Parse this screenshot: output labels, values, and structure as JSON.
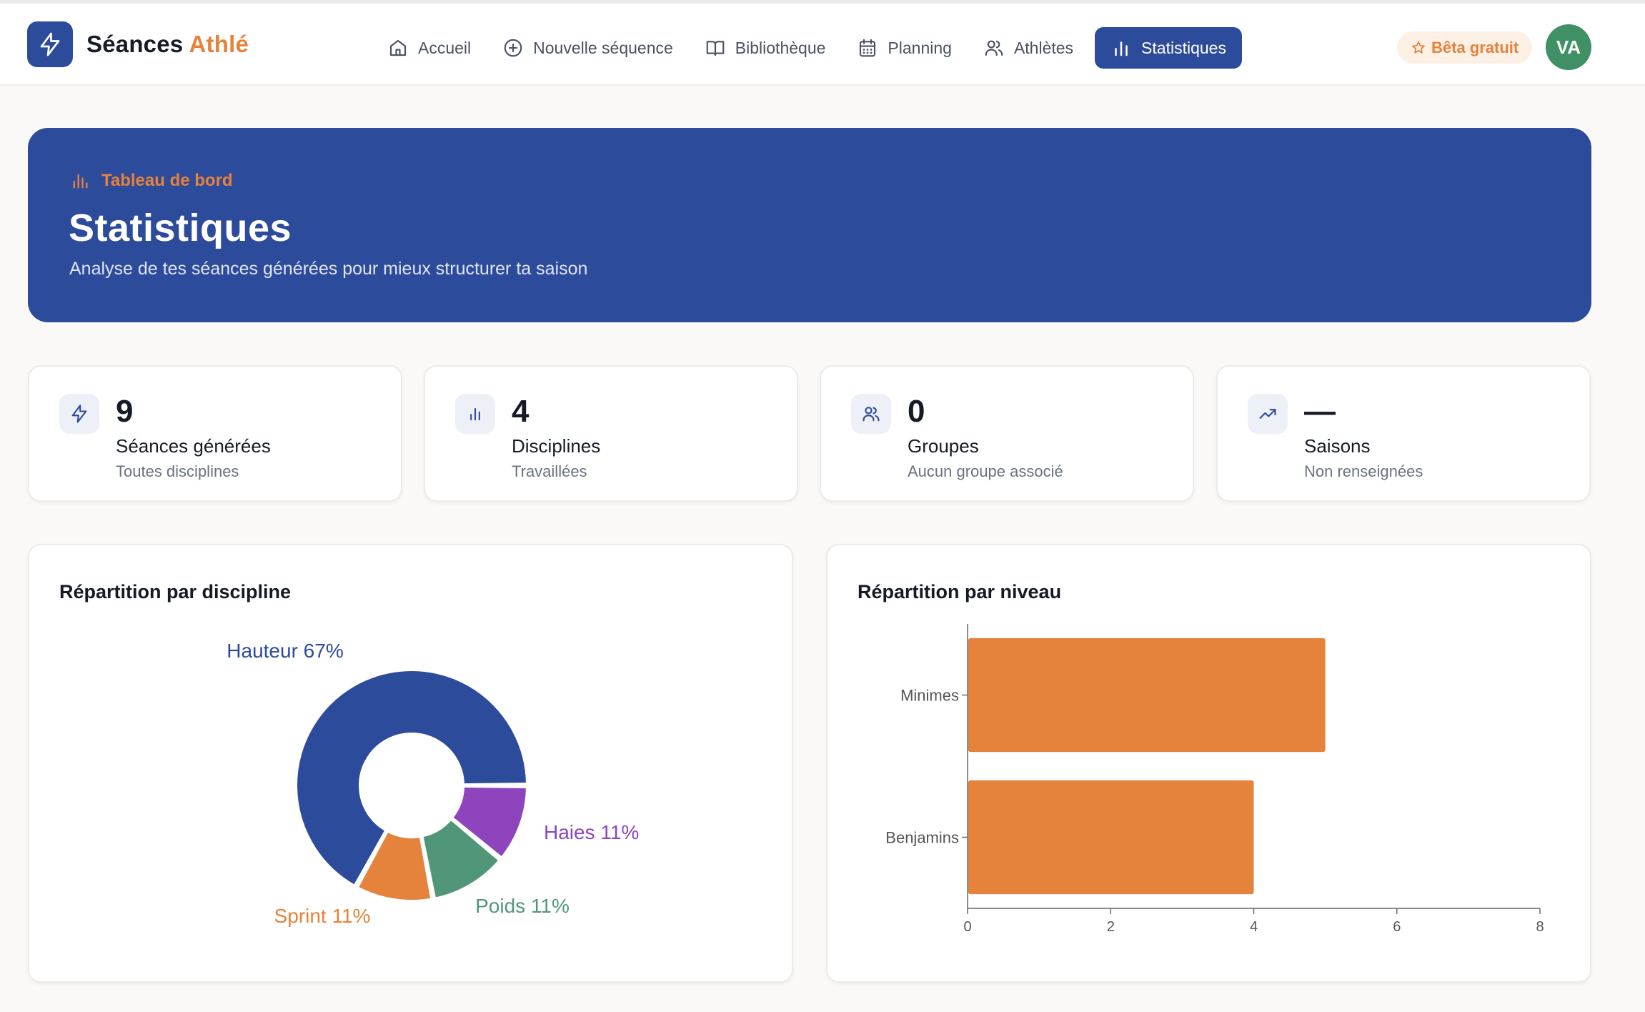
{
  "app": {
    "brand_main": "Séances",
    "brand_accent": "Athlé",
    "logo_icon": "lightning-icon"
  },
  "nav": {
    "items": [
      {
        "label": "Accueil",
        "icon": "home-icon",
        "active": false
      },
      {
        "label": "Nouvelle séquence",
        "icon": "plus-circle-icon",
        "active": false
      },
      {
        "label": "Bibliothèque",
        "icon": "book-icon",
        "active": false
      },
      {
        "label": "Planning",
        "icon": "calendar-icon",
        "active": false
      },
      {
        "label": "Athlètes",
        "icon": "users-icon",
        "active": false
      },
      {
        "label": "Statistiques",
        "icon": "bar-chart-icon",
        "active": true
      }
    ]
  },
  "header": {
    "beta_label": "Bêta gratuit",
    "beta_icon": "star-icon",
    "avatar_initials": "VA"
  },
  "hero": {
    "kicker": "Tableau de bord",
    "title": "Statistiques",
    "subtitle": "Analyse de tes séances générées pour mieux structurer ta saison"
  },
  "stats": [
    {
      "icon": "lightning-icon",
      "value": "9",
      "label": "Séances générées",
      "sub": "Toutes disciplines"
    },
    {
      "icon": "bar-chart-icon",
      "value": "4",
      "label": "Disciplines",
      "sub": "Travaillées"
    },
    {
      "icon": "users-icon",
      "value": "0",
      "label": "Groupes",
      "sub": "Aucun groupe associé"
    },
    {
      "icon": "trending-up-icon",
      "value": "—",
      "label": "Saisons",
      "sub": "Non renseignées"
    }
  ],
  "colors": {
    "primary": "#2d4b9b",
    "accent": "#e5823c",
    "purple": "#8e44bd",
    "green": "#52967a",
    "avatar": "#3f9165"
  },
  "chart_data": [
    {
      "type": "pie",
      "title": "Répartition par discipline",
      "slices": [
        {
          "label": "Hauteur 67%",
          "value": 67,
          "color": "#2d4b9b"
        },
        {
          "label": "Haies 11%",
          "value": 11,
          "color": "#8e44bd"
        },
        {
          "label": "Poids 11%",
          "value": 11,
          "color": "#52967a"
        },
        {
          "label": "Sprint 11%",
          "value": 11,
          "color": "#e5823c"
        }
      ]
    },
    {
      "type": "bar",
      "orientation": "horizontal",
      "title": "Répartition par niveau",
      "categories": [
        "Minimes",
        "Benjamins"
      ],
      "values": [
        5,
        4
      ],
      "xlim": [
        0,
        8
      ],
      "xticks": [
        "0",
        "2",
        "4",
        "6",
        "8"
      ],
      "color": "#e5823c",
      "grid": false
    }
  ]
}
